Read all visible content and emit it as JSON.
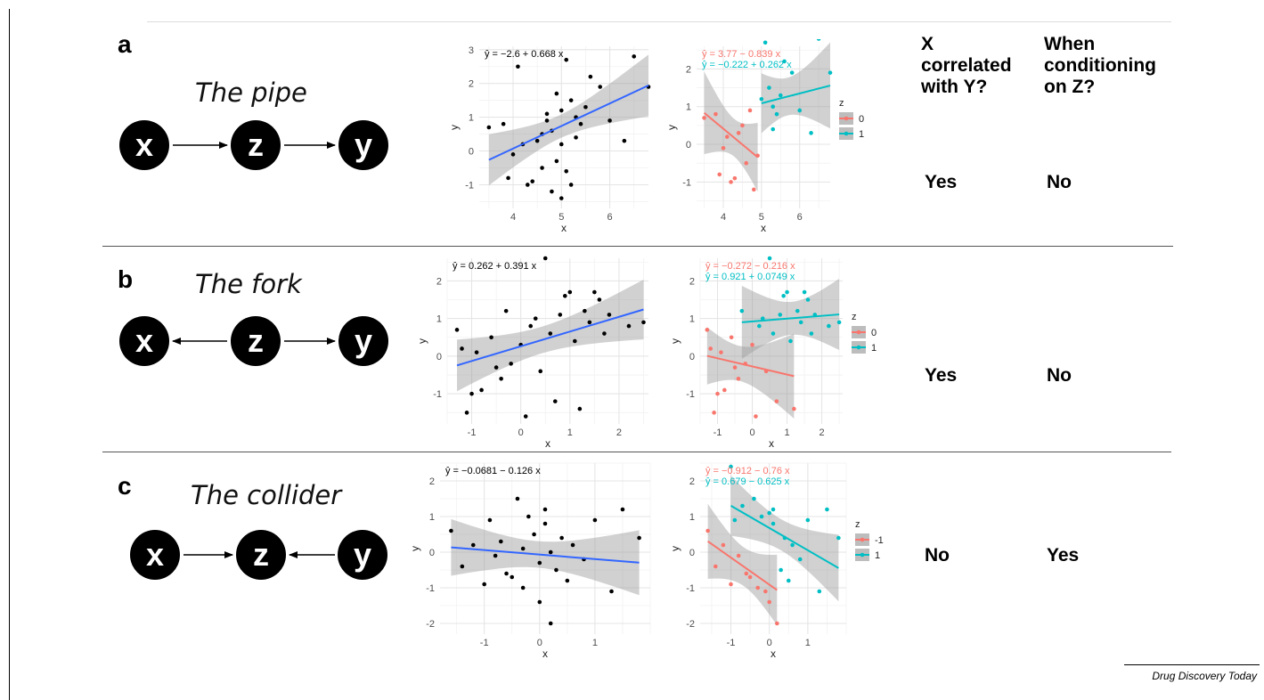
{
  "panels": [
    {
      "label": "a",
      "title": "The pipe",
      "nodes": [
        "x",
        "z",
        "y"
      ],
      "arrows": [
        "x->z",
        "z->y"
      ],
      "correlated": "Yes",
      "conditioning": "No",
      "left_plot": {
        "equation": "ŷ = −2.6 + 0.668 x",
        "xlabel": "x",
        "ylabel": "y",
        "xlim": [
          3.3,
          6.8
        ],
        "ylim": [
          -1.7,
          3.1
        ],
        "xticks": [
          4,
          5,
          6
        ],
        "yticks": [
          -1,
          0,
          1,
          2,
          3
        ]
      },
      "right_plot": {
        "equations": [
          {
            "group": "0",
            "text": "ŷ = 3.77 − 0.839 x",
            "color": "#F8766D"
          },
          {
            "group": "1",
            "text": "ŷ = −0.222 + 0.262 x",
            "color": "#00BFC4"
          }
        ],
        "xlabel": "x",
        "ylabel": "y",
        "xlim": [
          3.3,
          6.8
        ],
        "ylim": [
          -1.7,
          2.6
        ],
        "xticks": [
          4,
          5,
          6
        ],
        "yticks": [
          -1,
          0,
          1,
          2
        ],
        "legend_title": "z",
        "legend": [
          "0",
          "1"
        ]
      }
    },
    {
      "label": "b",
      "title": "The fork",
      "nodes": [
        "x",
        "z",
        "y"
      ],
      "arrows": [
        "z->x",
        "z->y"
      ],
      "correlated": "Yes",
      "conditioning": "No",
      "left_plot": {
        "equation": "ŷ = 0.262 + 0.391 x",
        "xlabel": "x",
        "ylabel": "y",
        "xlim": [
          -1.5,
          2.6
        ],
        "ylim": [
          -1.8,
          2.6
        ],
        "xticks": [
          -1,
          0,
          1,
          2
        ],
        "yticks": [
          -1,
          0,
          1,
          2
        ]
      },
      "right_plot": {
        "equations": [
          {
            "group": "0",
            "text": "ŷ = −0.272 − 0.216 x",
            "color": "#F8766D"
          },
          {
            "group": "1",
            "text": "ŷ = 0.921 + 0.0749 x",
            "color": "#00BFC4"
          }
        ],
        "xlabel": "x",
        "ylabel": "y",
        "xlim": [
          -1.5,
          2.6
        ],
        "ylim": [
          -1.8,
          2.6
        ],
        "xticks": [
          -1,
          0,
          1,
          2
        ],
        "yticks": [
          -1,
          0,
          1,
          2
        ],
        "legend_title": "z",
        "legend": [
          "0",
          "1"
        ]
      }
    },
    {
      "label": "c",
      "title": "The collider",
      "nodes": [
        "x",
        "z",
        "y"
      ],
      "arrows": [
        "x->z",
        "y->z"
      ],
      "correlated": "No",
      "conditioning": "Yes",
      "left_plot": {
        "equation": "ŷ = −0.0681 − 0.126 x",
        "xlabel": "x",
        "ylabel": "y",
        "xlim": [
          -1.8,
          2.0
        ],
        "ylim": [
          -2.3,
          2.5
        ],
        "xticks": [
          -1,
          0,
          1
        ],
        "yticks": [
          -2,
          -1,
          0,
          1,
          2
        ]
      },
      "right_plot": {
        "equations": [
          {
            "group": "-1",
            "text": "ŷ = −0.912 − 0.76 x",
            "color": "#F8766D"
          },
          {
            "group": "1",
            "text": "ŷ = 0.679 − 0.625 x",
            "color": "#00BFC4"
          }
        ],
        "xlabel": "x",
        "ylabel": "y",
        "xlim": [
          -1.8,
          2.0
        ],
        "ylim": [
          -2.3,
          2.5
        ],
        "xticks": [
          -1,
          0,
          1
        ],
        "yticks": [
          -2,
          -1,
          0,
          1,
          2
        ],
        "legend_title": "z",
        "legend": [
          "-1",
          "1"
        ]
      }
    }
  ],
  "column_headers": {
    "correlated": [
      "X",
      "correlated",
      "with Y?"
    ],
    "conditioning": [
      "When",
      "conditioning",
      "on Z?"
    ]
  },
  "source": "Drug Discovery Today",
  "colors": {
    "group0": "#F8766D",
    "group1": "#00BFC4",
    "overall_fit": "#3366FF",
    "ribbon": "#BEBEBE",
    "node": "#000000"
  },
  "chart_data": [
    {
      "type": "scatter",
      "panel": "a",
      "subplot": "pooled",
      "fit": {
        "intercept": -2.6,
        "slope": 0.668
      },
      "x": [
        3.5,
        3.8,
        3.9,
        4.0,
        4.1,
        4.2,
        4.3,
        4.4,
        4.5,
        4.6,
        4.6,
        4.7,
        4.7,
        4.8,
        4.8,
        4.9,
        4.9,
        5.0,
        5.0,
        5.0,
        5.1,
        5.1,
        5.2,
        5.2,
        5.3,
        5.3,
        5.4,
        5.5,
        5.6,
        5.8,
        6.0,
        6.3,
        6.5,
        6.8
      ],
      "y": [
        0.7,
        0.8,
        -0.8,
        -0.1,
        2.5,
        0.2,
        -1.0,
        -0.9,
        0.3,
        0.5,
        -0.5,
        1.1,
        0.9,
        -1.2,
        0.6,
        -0.3,
        1.7,
        1.2,
        -1.4,
        0.2,
        -0.6,
        2.7,
        1.5,
        -1.0,
        1.0,
        0.4,
        0.8,
        1.3,
        2.2,
        1.9,
        0.9,
        0.3,
        2.8,
        1.9
      ]
    },
    {
      "type": "scatter",
      "panel": "a",
      "subplot": "by-z",
      "series": [
        {
          "name": "0",
          "fit": {
            "intercept": 3.77,
            "slope": -0.839
          },
          "x": [
            3.5,
            3.8,
            3.9,
            4.0,
            4.1,
            4.2,
            4.3,
            4.4,
            4.5,
            4.6,
            4.7,
            4.8,
            4.9
          ],
          "y": [
            0.7,
            0.8,
            -0.8,
            -0.1,
            0.2,
            -1.0,
            -0.9,
            0.3,
            0.5,
            -0.5,
            0.9,
            -1.2,
            -0.3
          ]
        },
        {
          "name": "1",
          "fit": {
            "intercept": -0.222,
            "slope": 0.262
          },
          "x": [
            5.0,
            5.1,
            5.2,
            5.3,
            5.3,
            5.4,
            5.5,
            5.6,
            5.8,
            6.0,
            6.3,
            6.5,
            6.8
          ],
          "y": [
            1.2,
            2.7,
            1.5,
            1.0,
            0.4,
            0.8,
            1.3,
            2.2,
            1.9,
            0.9,
            0.3,
            2.8,
            1.9
          ]
        }
      ]
    },
    {
      "type": "scatter",
      "panel": "b",
      "subplot": "pooled",
      "fit": {
        "intercept": 0.262,
        "slope": 0.391
      },
      "x": [
        -1.3,
        -1.2,
        -1.1,
        -1.0,
        -0.9,
        -0.8,
        -0.6,
        -0.5,
        -0.4,
        -0.3,
        -0.2,
        0.0,
        0.1,
        0.2,
        0.3,
        0.4,
        0.5,
        0.6,
        0.7,
        0.8,
        0.9,
        1.0,
        1.1,
        1.2,
        1.3,
        1.4,
        1.5,
        1.6,
        1.7,
        1.8,
        2.2,
        2.5
      ],
      "y": [
        0.7,
        0.2,
        -1.5,
        -1.0,
        0.1,
        -0.9,
        0.5,
        -0.3,
        -0.6,
        1.2,
        -0.2,
        0.3,
        -1.6,
        0.8,
        1.0,
        -0.4,
        2.6,
        0.6,
        -1.2,
        1.1,
        1.6,
        1.7,
        0.4,
        -1.4,
        1.2,
        0.9,
        1.7,
        1.5,
        0.6,
        1.1,
        0.8,
        0.9
      ]
    },
    {
      "type": "scatter",
      "panel": "b",
      "subplot": "by-z",
      "series": [
        {
          "name": "0",
          "fit": {
            "intercept": -0.272,
            "slope": -0.216
          },
          "x": [
            -1.3,
            -1.2,
            -1.1,
            -1.0,
            -0.9,
            -0.8,
            -0.6,
            -0.5,
            -0.4,
            -0.2,
            0.0,
            0.1,
            0.4,
            0.7,
            1.2
          ],
          "y": [
            0.7,
            0.2,
            -1.5,
            -1.0,
            0.1,
            -0.9,
            0.5,
            -0.3,
            -0.6,
            -0.2,
            0.3,
            -1.6,
            -0.4,
            -1.2,
            -1.4
          ]
        },
        {
          "name": "1",
          "fit": {
            "intercept": 0.921,
            "slope": 0.0749
          },
          "x": [
            -0.3,
            0.2,
            0.3,
            0.5,
            0.6,
            0.8,
            0.9,
            1.0,
            1.1,
            1.3,
            1.4,
            1.5,
            1.6,
            1.7,
            1.8,
            2.2,
            2.5
          ],
          "y": [
            1.2,
            0.8,
            1.0,
            2.6,
            0.6,
            1.1,
            1.6,
            1.7,
            0.4,
            1.2,
            0.9,
            1.7,
            1.5,
            0.6,
            1.1,
            0.8,
            0.9
          ]
        }
      ]
    },
    {
      "type": "scatter",
      "panel": "c",
      "subplot": "pooled",
      "fit": {
        "intercept": -0.0681,
        "slope": -0.126
      },
      "x": [
        -1.6,
        -1.4,
        -1.2,
        -1.0,
        -0.9,
        -0.8,
        -0.7,
        -0.6,
        -0.5,
        -0.4,
        -0.3,
        -0.3,
        -0.2,
        -0.1,
        0.0,
        0.0,
        0.1,
        0.1,
        0.2,
        0.2,
        0.3,
        0.4,
        0.5,
        0.6,
        0.8,
        1.0,
        1.3,
        1.5,
        1.8
      ],
      "y": [
        0.6,
        -0.4,
        0.2,
        -0.9,
        0.9,
        -0.1,
        0.3,
        -0.6,
        -0.7,
        1.5,
        0.1,
        -1.0,
        1.0,
        0.5,
        -1.4,
        -0.3,
        0.8,
        1.2,
        -2.0,
        0.0,
        -0.5,
        0.4,
        -0.8,
        0.2,
        -0.2,
        0.9,
        -1.1,
        1.2,
        0.4
      ]
    },
    {
      "type": "scatter",
      "panel": "c",
      "subplot": "by-z",
      "series": [
        {
          "name": "-1",
          "fit": {
            "intercept": -0.912,
            "slope": -0.76
          },
          "x": [
            -1.6,
            -1.4,
            -1.2,
            -1.0,
            -0.8,
            -0.6,
            -0.5,
            -0.3,
            -0.1,
            0.0,
            0.2
          ],
          "y": [
            0.6,
            -0.4,
            0.2,
            -0.9,
            -0.1,
            -0.6,
            -0.7,
            -1.0,
            -1.1,
            -1.4,
            -2.0
          ]
        },
        {
          "name": "1",
          "fit": {
            "intercept": 0.679,
            "slope": -0.625
          },
          "x": [
            -1.0,
            -0.9,
            -0.7,
            -0.4,
            -0.2,
            0.0,
            0.1,
            0.1,
            0.3,
            0.4,
            0.5,
            0.6,
            0.8,
            1.0,
            1.3,
            1.5,
            1.8
          ],
          "y": [
            2.4,
            0.9,
            1.3,
            1.5,
            1.0,
            1.1,
            0.8,
            1.2,
            -0.5,
            0.4,
            -0.8,
            0.2,
            -0.2,
            0.9,
            -1.1,
            1.2,
            0.4
          ]
        }
      ]
    }
  ]
}
